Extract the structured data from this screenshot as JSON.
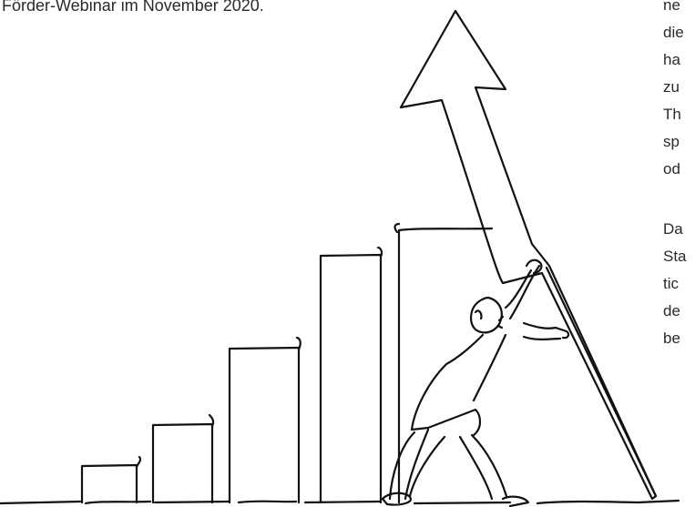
{
  "caption": "Förder-Webinar im November 2020.",
  "side_text": {
    "paragraph_1": [
      "ne",
      "die",
      "ha",
      "zu",
      "Th",
      "sp",
      "od"
    ],
    "paragraph_2": [
      "Da",
      "Sta",
      "tic",
      "de",
      "be"
    ]
  },
  "illustration": {
    "subject": "line-drawing-man-pushing-growth-arrow-over-bar-steps",
    "stroke_color": "#111111"
  }
}
